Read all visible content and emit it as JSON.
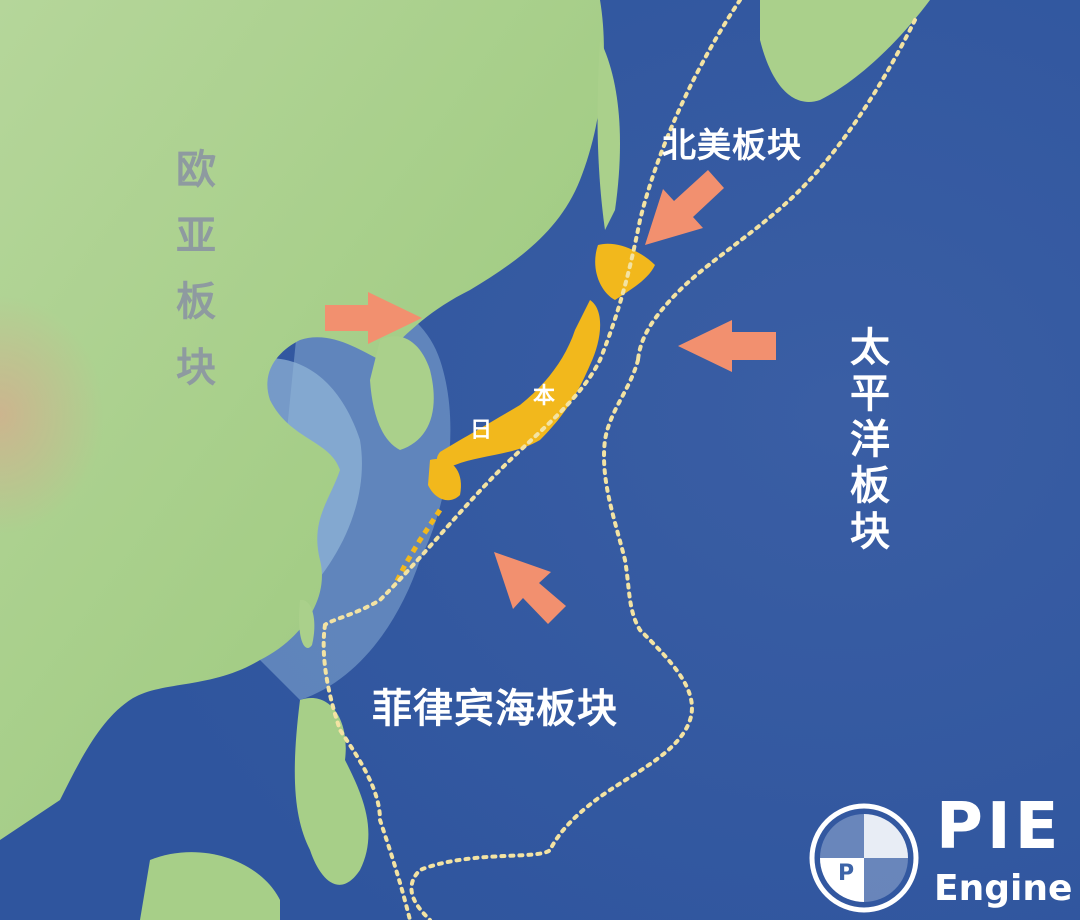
{
  "map": {
    "plates": {
      "eurasian": "欧亚板块",
      "north_american": "北美板块",
      "pacific": "太平洋板块",
      "philippine_sea": "菲律宾海板块"
    },
    "japan_label": [
      "本",
      "日"
    ],
    "colors": {
      "ocean": "#3d64a8",
      "land": "#a9d08a",
      "japan": "#f2b81c",
      "boundary": "#f3e3a3",
      "arrow": "#f2906f"
    }
  },
  "logo": {
    "text": "PIE",
    "subtext": "Engine",
    "icon": "globe-pie-icon"
  }
}
